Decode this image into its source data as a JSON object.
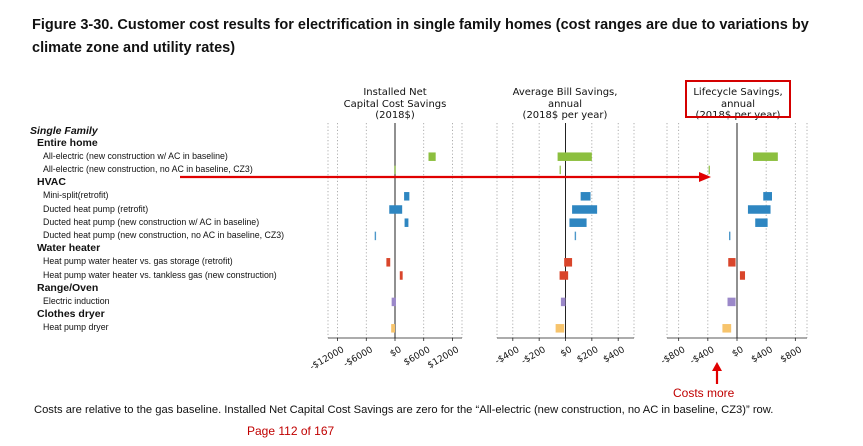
{
  "title": "Figure 3-30. Customer cost results for electrification in single family homes (cost ranges are due to variations by climate zone and utility rates)",
  "section_label": "Single Family",
  "row_labels": [
    {
      "kind": "group",
      "text": "Entire home"
    },
    {
      "kind": "item",
      "text": "All-electric (new construction w/ AC in baseline)"
    },
    {
      "kind": "item",
      "text": "All-electric (new construction, no AC in baseline, CZ3)"
    },
    {
      "kind": "group",
      "text": "HVAC"
    },
    {
      "kind": "item",
      "text": "Mini-split(retrofit)"
    },
    {
      "kind": "item",
      "text": "Ducted heat pump (retrofit)"
    },
    {
      "kind": "item",
      "text": "Ducted heat pump (new construction w/ AC in baseline)"
    },
    {
      "kind": "item",
      "text": "Ducted heat pump (new construction, no AC in baseline, CZ3)"
    },
    {
      "kind": "group",
      "text": "Water heater"
    },
    {
      "kind": "item",
      "text": "Heat pump water heater vs. gas storage (retrofit)"
    },
    {
      "kind": "item",
      "text": "Heat pump water heater vs. tankless gas (new construction)"
    },
    {
      "kind": "group",
      "text": "Range/Oven"
    },
    {
      "kind": "item",
      "text": "Electric induction"
    },
    {
      "kind": "group",
      "text": "Clothes dryer"
    },
    {
      "kind": "item",
      "text": "Heat pump dryer"
    }
  ],
  "colors": {
    "entire_home": "#8cbf3f",
    "hvac": "#2e86c1",
    "water_heater": "#d9452b",
    "range": "#9b88c9",
    "dryer": "#f7c46c",
    "annotation_red": "#e00000"
  },
  "annotation": {
    "costs_more": "Costs more"
  },
  "footnote": "Costs are relative to the gas baseline. Installed Net Capital Cost Savings are zero for the “All-electric (new construction, no AC in baseline, CZ3)” row.",
  "page_number": "Page 112 of 167",
  "chart_data": [
    {
      "type": "bar",
      "title": "Installed Net\nCapital Cost Savings\n(2018$)",
      "xlim": [
        -14000,
        14000
      ],
      "ticks": [
        -12000,
        -6000,
        0,
        6000,
        12000
      ],
      "tick_labels": [
        "-$12000",
        "-$6000",
        "$0",
        "$6000",
        "$12000"
      ],
      "rows": [
        {
          "row": 1,
          "lo": 7000,
          "hi": 8500,
          "color": "entire_home"
        },
        {
          "row": 2,
          "lo": 0,
          "hi": 0,
          "color": "entire_home"
        },
        {
          "row": 4,
          "lo": 1900,
          "hi": 3000,
          "color": "hvac"
        },
        {
          "row": 5,
          "lo": -1200,
          "hi": 1500,
          "color": "hvac"
        },
        {
          "row": 6,
          "lo": 2000,
          "hi": 2800,
          "color": "hvac"
        },
        {
          "row": 7,
          "lo": -4100,
          "hi": -4100,
          "color": "hvac"
        },
        {
          "row": 9,
          "lo": -1800,
          "hi": -1000,
          "color": "water_heater"
        },
        {
          "row": 10,
          "lo": 1000,
          "hi": 1600,
          "color": "water_heater"
        },
        {
          "row": 12,
          "lo": -700,
          "hi": 200,
          "color": "range"
        },
        {
          "row": 14,
          "lo": -800,
          "hi": 0,
          "color": "dryer"
        }
      ]
    },
    {
      "type": "bar",
      "title": "Average Bill Savings,\nannual\n(2018$ per year)",
      "xlim": [
        -520,
        520
      ],
      "ticks": [
        -400,
        -200,
        0,
        200,
        400
      ],
      "tick_labels": [
        "-$400",
        "-$200",
        "$0",
        "$200",
        "$400"
      ],
      "rows": [
        {
          "row": 1,
          "lo": -60,
          "hi": 200,
          "color": "entire_home"
        },
        {
          "row": 2,
          "lo": -40,
          "hi": -40,
          "color": "entire_home"
        },
        {
          "row": 4,
          "lo": 115,
          "hi": 190,
          "color": "hvac"
        },
        {
          "row": 5,
          "lo": 50,
          "hi": 240,
          "color": "hvac"
        },
        {
          "row": 6,
          "lo": 30,
          "hi": 160,
          "color": "hvac"
        },
        {
          "row": 7,
          "lo": 75,
          "hi": 75,
          "color": "hvac"
        },
        {
          "row": 9,
          "lo": -10,
          "hi": 50,
          "color": "water_heater"
        },
        {
          "row": 10,
          "lo": -45,
          "hi": 20,
          "color": "water_heater"
        },
        {
          "row": 12,
          "lo": -35,
          "hi": 0,
          "color": "range"
        },
        {
          "row": 14,
          "lo": -75,
          "hi": -10,
          "color": "dryer"
        }
      ]
    },
    {
      "type": "bar",
      "title": "Lifecycle Savings,\nannual\n(2018$ per year)",
      "xlim": [
        -960,
        960
      ],
      "ticks": [
        -800,
        -400,
        0,
        400,
        800
      ],
      "tick_labels": [
        "-$800",
        "-$400",
        "$0",
        "$400",
        "$800"
      ],
      "rows": [
        {
          "row": 1,
          "lo": 220,
          "hi": 560,
          "color": "entire_home"
        },
        {
          "row": 2,
          "lo": -380,
          "hi": -380,
          "color": "entire_home"
        },
        {
          "row": 4,
          "lo": 360,
          "hi": 480,
          "color": "hvac"
        },
        {
          "row": 5,
          "lo": 150,
          "hi": 460,
          "color": "hvac"
        },
        {
          "row": 6,
          "lo": 250,
          "hi": 420,
          "color": "hvac"
        },
        {
          "row": 7,
          "lo": -100,
          "hi": -100,
          "color": "hvac"
        },
        {
          "row": 9,
          "lo": -120,
          "hi": -20,
          "color": "water_heater"
        },
        {
          "row": 10,
          "lo": 40,
          "hi": 110,
          "color": "water_heater"
        },
        {
          "row": 12,
          "lo": -130,
          "hi": -20,
          "color": "range"
        },
        {
          "row": 14,
          "lo": -200,
          "hi": -80,
          "color": "dryer"
        }
      ]
    }
  ]
}
